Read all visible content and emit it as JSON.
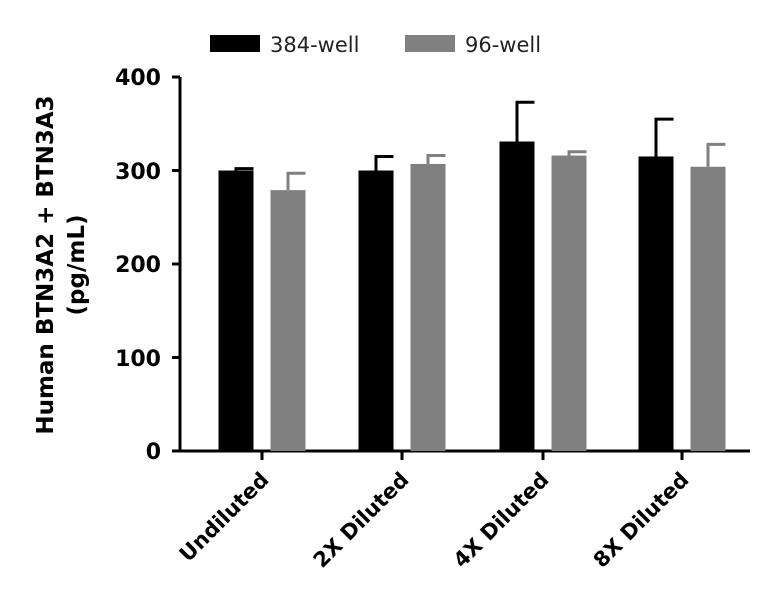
{
  "chart_data": {
    "type": "bar",
    "categories": [
      "Undiluted",
      "2X Diluted",
      "4X Diluted",
      "8X Diluted"
    ],
    "series": [
      {
        "name": "384-well",
        "color": "#000000",
        "values": [
          300,
          300,
          331,
          315
        ],
        "errors": [
          2,
          15,
          42,
          40
        ]
      },
      {
        "name": "96-well",
        "color": "#808080",
        "values": [
          279,
          307,
          316,
          304
        ],
        "errors": [
          18,
          9,
          4,
          24
        ]
      }
    ],
    "ylabel_line1": "Human BTN3A2 + BTN3A3",
    "ylabel_line2": "(pg/mL)",
    "ylim": [
      0,
      400
    ],
    "yticks": [
      "0",
      "100",
      "200",
      "300",
      "400"
    ],
    "legend_position": "top"
  }
}
